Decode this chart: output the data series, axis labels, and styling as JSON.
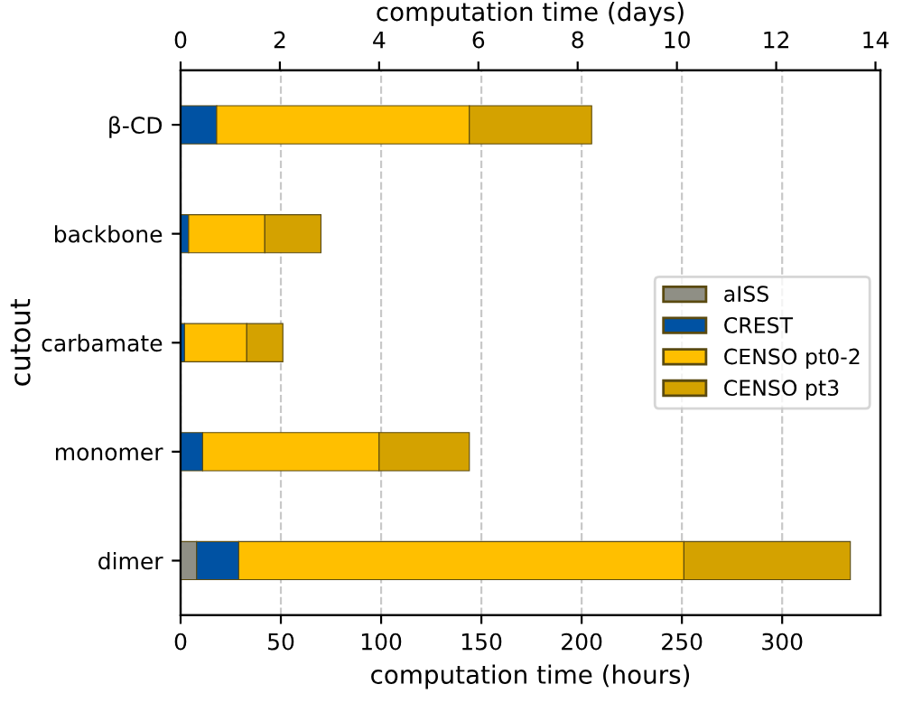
{
  "chart_data": {
    "type": "bar",
    "orientation": "horizontal",
    "stacked": true,
    "categories": [
      "β-CD",
      "backbone",
      "carbamate",
      "monomer",
      "dimer"
    ],
    "series": [
      {
        "name": "aISS",
        "color": "#8f8f85",
        "values": [
          null,
          null,
          null,
          null,
          8
        ]
      },
      {
        "name": "CREST",
        "color": "#0052a3",
        "values": [
          18,
          4,
          2,
          11,
          21
        ]
      },
      {
        "name": "CENSO pt0-2",
        "color": "#ffbf00",
        "values": [
          126,
          38,
          31,
          88,
          222
        ]
      },
      {
        "name": "CENSO pt3",
        "color": "#d4a200",
        "values": [
          61,
          28,
          18,
          45,
          83
        ]
      }
    ],
    "xlabel": "computation time (hours)",
    "ylabel": "cutout",
    "x2label": "computation time (days)",
    "xlim": [
      0,
      349
    ],
    "xticks": [
      0,
      50,
      100,
      150,
      200,
      250,
      300
    ],
    "x2lim": [
      0,
      14.1
    ],
    "x2ticks": [
      0,
      2,
      4,
      6,
      8,
      10,
      12,
      14
    ],
    "grid": "x",
    "legend": "right"
  }
}
